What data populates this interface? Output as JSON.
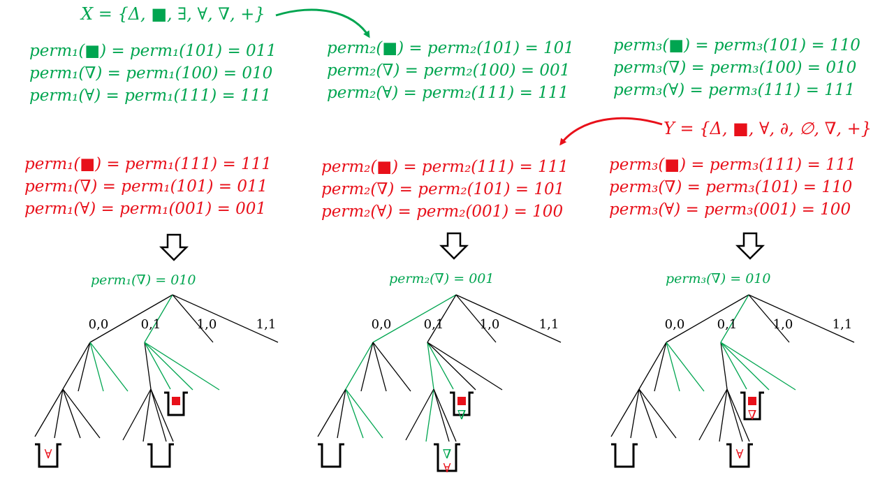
{
  "colors": {
    "x_set": "#00a550",
    "y_set": "#e8101a",
    "edge": "#000000"
  },
  "set_x": "X = {Δ, ■, ∃, ∀, ∇, +}",
  "set_y": "Y = {Δ, ■, ∀, ∂, ∅, ∇, +}",
  "x_perms": [
    [
      "perm₁(■) = perm₁(101) = 011",
      "perm₁(∇) = perm₁(100) = 010",
      "perm₁(∀) = perm₁(111) = 111"
    ],
    [
      "perm₂(■) = perm₂(101) = 101",
      "perm₂(∇) = perm₂(100) = 001",
      "perm₂(∀) = perm₂(111) = 111"
    ],
    [
      "perm₃(■) = perm₃(101) = 110",
      "perm₃(∇) = perm₃(100) = 010",
      "perm₃(∀) = perm₃(111) = 111"
    ]
  ],
  "y_perms": [
    [
      "perm₁(■) = perm₁(111) = 111",
      "perm₁(∇) = perm₁(101) = 011",
      "perm₁(∀) = perm₁(001) = 001"
    ],
    [
      "perm₂(■) = perm₂(111) = 111",
      "perm₂(∇) = perm₂(101) = 101",
      "perm₂(∀) = perm₂(001) = 100"
    ],
    [
      "perm₃(■) = perm₃(111) = 111",
      "perm₃(∇) = perm₃(101) = 110",
      "perm₃(∀) = perm₃(001) = 100"
    ]
  ],
  "trees": [
    {
      "label": "perm₁(∇) = 010",
      "branches": [
        "0,0",
        "0,1",
        "1,0",
        "1,1"
      ]
    },
    {
      "label": "perm₂(∇) = 001",
      "branches": [
        "0,0",
        "0,1",
        "1,0",
        "1,1"
      ]
    },
    {
      "label": "perm₃(∇) = 010",
      "branches": [
        "0,0",
        "0,1",
        "1,0",
        "1,1"
      ]
    }
  ],
  "bucket_symbols": {
    "square": "■",
    "nabla": "∇",
    "forall": "∀"
  }
}
